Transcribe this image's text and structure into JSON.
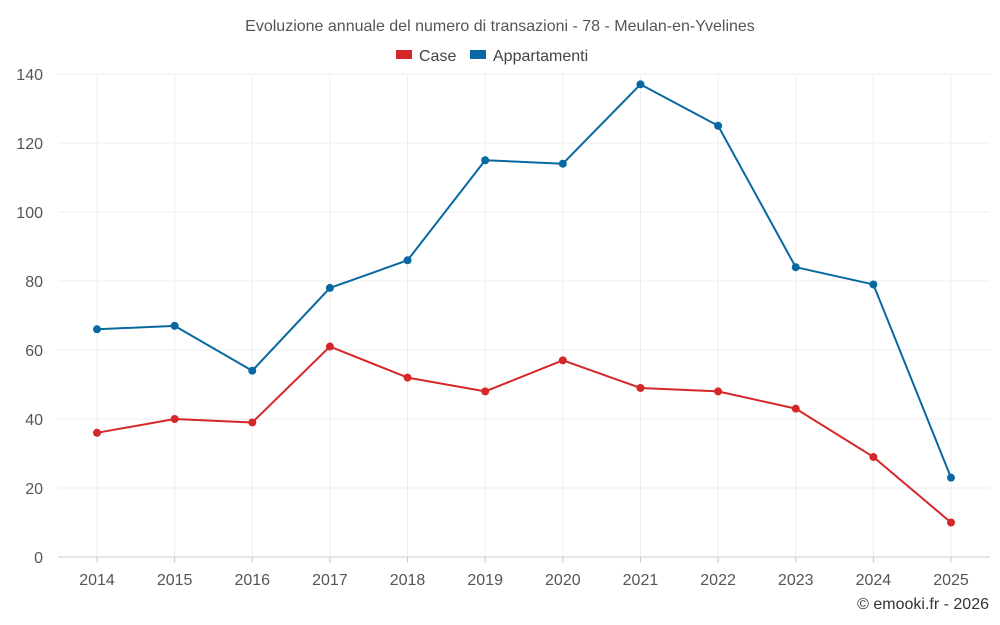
{
  "chart_data": {
    "type": "line",
    "title": "Evoluzione annuale del numero di transazioni - 78 - Meulan-en-Yvelines",
    "categories": [
      "2014",
      "2015",
      "2016",
      "2017",
      "2018",
      "2019",
      "2020",
      "2021",
      "2022",
      "2023",
      "2024",
      "2025"
    ],
    "series": [
      {
        "name": "Case",
        "color": "#d62728",
        "values": [
          36,
          40,
          39,
          61,
          52,
          48,
          57,
          49,
          48,
          43,
          29,
          10
        ]
      },
      {
        "name": "Appartamenti",
        "color": "#0868a0",
        "values": [
          66,
          67,
          54,
          78,
          86,
          115,
          114,
          137,
          125,
          84,
          79,
          23
        ]
      }
    ],
    "yticks": [
      "0",
      "20",
      "40",
      "60",
      "80",
      "100",
      "120",
      "140"
    ],
    "ylim": [
      0,
      140
    ],
    "grid": true,
    "legend_position": "top-center",
    "xlabel": "",
    "ylabel": ""
  },
  "credit": "© emooki.fr - 2026"
}
